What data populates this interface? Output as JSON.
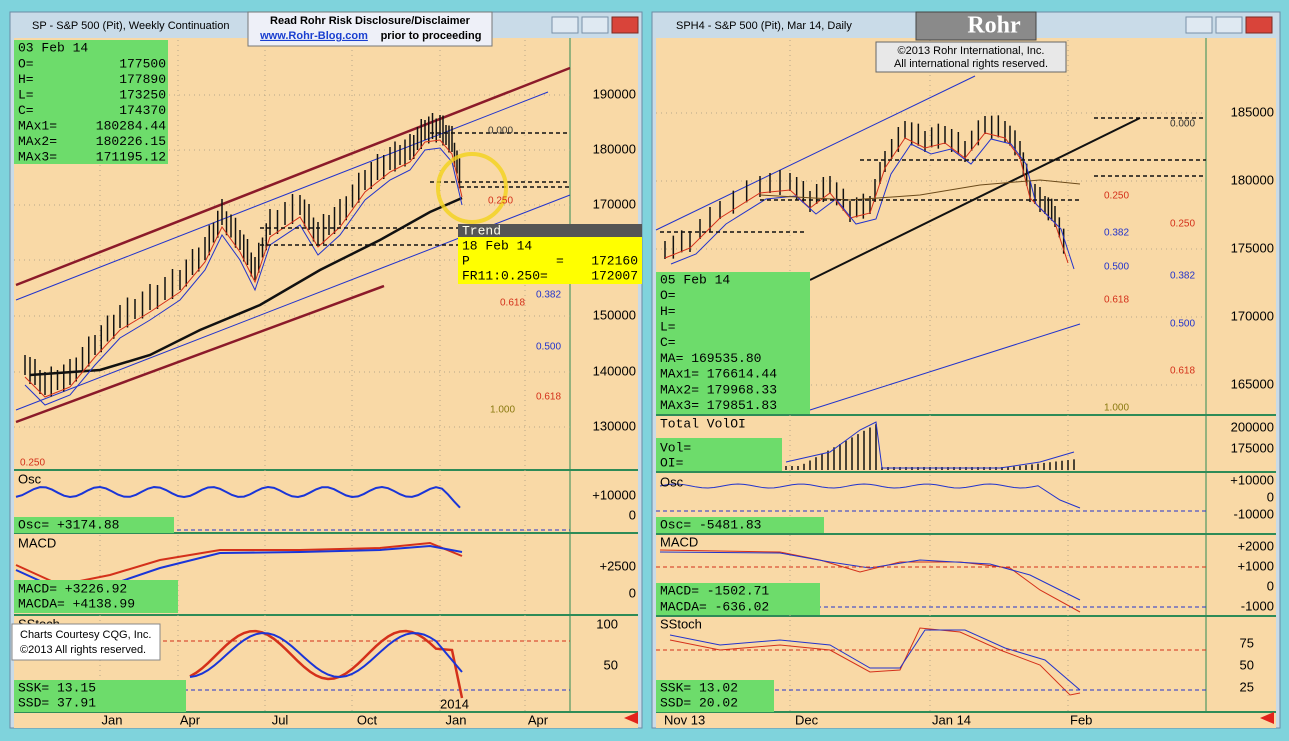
{
  "left": {
    "title": "SP - S&P 500 (Pit), Weekly Continuation",
    "disclaimer": {
      "line1": "Read Rohr Risk Disclosure/Disclaimer",
      "link": "www.Rohr-Blog.com",
      "rest": "prior to proceeding"
    },
    "info": [
      "03 Feb 14",
      "O=",
      "177500",
      "H=",
      "177890",
      "L=",
      "173250",
      "C=",
      "174370",
      "MAx1=",
      "180284.44",
      "MAx2=",
      "180226.15",
      "MAx3=",
      "171195.12"
    ],
    "price_axis": [
      "190000",
      "180000",
      "170000",
      "150000",
      "140000",
      "130000"
    ],
    "fib_labels": [
      "0.000",
      "0.250",
      "0.382",
      "0.618",
      "0.500",
      "0.618",
      "1.000",
      "0.250"
    ],
    "tooltip": {
      "header": "Trend",
      "date": "18 Feb 14",
      "p": "P",
      "eq": "=",
      "p_value": "172160",
      "fr": "FR11:0.250=",
      "fr_value": "172007"
    },
    "osc": {
      "label": "Osc",
      "value": "Osc=  +3174.88",
      "axis": [
        "+10000",
        "0"
      ]
    },
    "macd": {
      "label": "MACD",
      "macd": "MACD=  +3226.92",
      "macda": "MACDA= +4138.99",
      "axis": [
        "+2500",
        "0"
      ]
    },
    "sstoch": {
      "label": "SStoch",
      "ssk": "SSK=       13.15",
      "ssd": "SSD=       37.91",
      "axis": [
        "100",
        "50"
      ]
    },
    "credit": [
      "Charts Courtesy CQG, Inc.",
      "©2013 All rights reserved."
    ],
    "x_labels": [
      "Jan",
      "Apr",
      "Jul",
      "Oct",
      "Jan",
      "Apr"
    ],
    "year": "2014"
  },
  "right": {
    "title": "SPH4 - S&P 500 (Pit), Mar 14, Daily",
    "logo": "Rohr",
    "copyright": [
      "©2013 Rohr International, Inc.",
      "All international rights reserved."
    ],
    "price_axis": [
      "185000",
      "180000",
      "175000",
      "170000",
      "165000"
    ],
    "fib_labels": [
      "0.000",
      "0.250",
      "0.250",
      "0.382",
      "0.382",
      "0.500",
      "0.500",
      "0.618",
      "0.618",
      "1.000"
    ],
    "info": [
      "05 Feb 14",
      "O=",
      "H=",
      "L=",
      "C=",
      "MA=      169535.80",
      "MAx1=    176614.44",
      "MAx2=    179968.33",
      "MAx3=    179851.83"
    ],
    "vol": {
      "label": "Total VolOI",
      "vol": "Vol=",
      "oi": "OI=",
      "axis": [
        "200000",
        "175000"
      ]
    },
    "osc": {
      "label": "Osc",
      "value": "Osc=  -5481.83",
      "axis": [
        "+10000",
        "0",
        "-10000"
      ]
    },
    "macd": {
      "label": "MACD",
      "macd": "MACD=   -1502.71",
      "macda": "MACDA=   -636.02",
      "axis": [
        "+2000",
        "+1000",
        "0",
        "-1000"
      ]
    },
    "sstoch": {
      "label": "SStoch",
      "ssk": "SSK=   13.02",
      "ssd": "SSD=   20.02",
      "axis": [
        "75",
        "50",
        "25"
      ]
    },
    "x_labels": [
      "Nov 13",
      "Dec",
      "Jan 14",
      "Feb"
    ]
  }
}
